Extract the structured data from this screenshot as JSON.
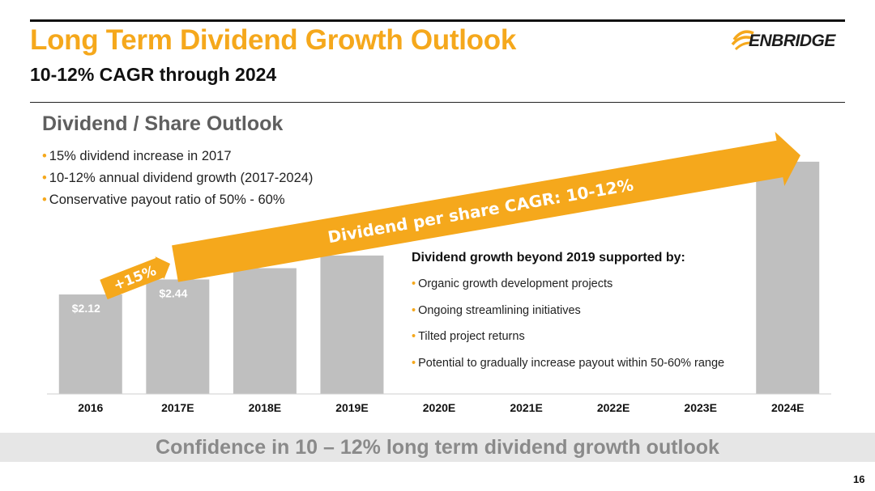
{
  "header": {
    "title": "Long Term Dividend Growth Outlook",
    "subtitle": "10-12% CAGR through 2024",
    "logo_text": "ENBRIDGE"
  },
  "section": {
    "heading": "Dividend / Share Outlook",
    "bullets": [
      "15% dividend increase in 2017",
      "10-12% annual dividend growth (2017-2024)",
      "Conservative payout ratio of 50% - 60%"
    ]
  },
  "support_box": {
    "heading": "Dividend growth beyond 2019 supported by:",
    "items": [
      "Organic growth development projects",
      "Ongoing streamlining initiatives",
      "Tilted project returns",
      "Potential to gradually increase payout within 50-60% range"
    ]
  },
  "chart_data": {
    "type": "bar",
    "categories": [
      "2016",
      "2017E",
      "2018E",
      "2019E",
      "2020E",
      "2021E",
      "2022E",
      "2023E",
      "2024E"
    ],
    "values": [
      2.12,
      2.44,
      2.68,
      2.95,
      null,
      null,
      null,
      null,
      4.95
    ],
    "data_labels": [
      "$2.12",
      "$2.44",
      "",
      "",
      "",
      "",
      "",
      "",
      ""
    ],
    "ylim": [
      0,
      5.5
    ],
    "bar_color": "#bfbfbf",
    "arrows": [
      {
        "label": "+15%",
        "from": "2016",
        "to": "2017E",
        "color": "#f5a81c"
      },
      {
        "label": "Dividend per share CAGR: 10-12%",
        "from": "2017E",
        "to": "2024E",
        "color": "#f5a81c"
      }
    ]
  },
  "footer": {
    "text": "Confidence in 10 – 12% long term dividend growth outlook",
    "page_number": "16"
  },
  "colors": {
    "accent": "#f5a81c",
    "bar": "#bfbfbf",
    "footer_band": "#e6e6e6",
    "footer_text": "#8a8a8a"
  }
}
